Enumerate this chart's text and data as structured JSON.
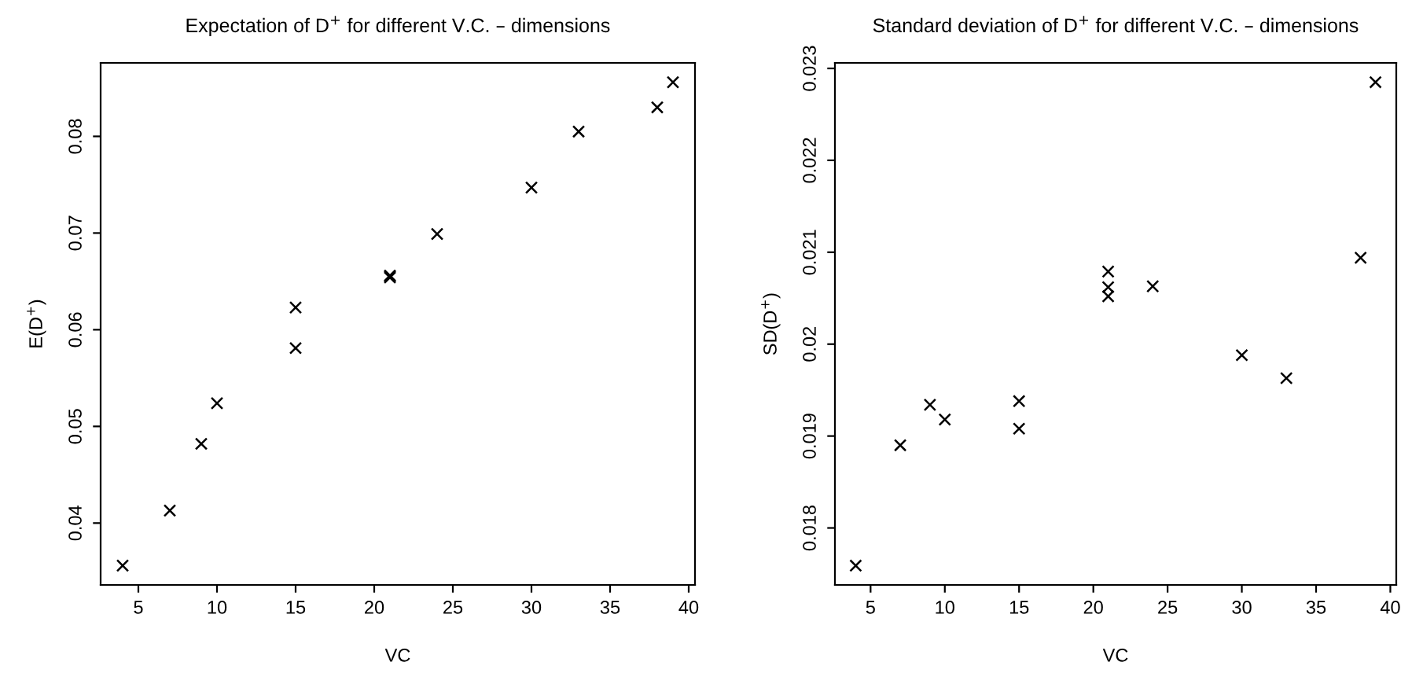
{
  "chart_data": [
    {
      "type": "scatter",
      "title": "Expectation of D$^{+}$ for different V.C. – dimensions",
      "xlabel": "VC",
      "ylabel": "E(D$^{+}$)",
      "marker": "cross",
      "grid": false,
      "legend": false,
      "x": [
        4,
        7,
        9,
        10,
        15,
        15,
        21,
        21,
        21,
        24,
        30,
        33,
        38,
        39
      ],
      "values": [
        0.0356,
        0.0413,
        0.0482,
        0.0524,
        0.0581,
        0.0623,
        0.0656,
        0.0655,
        0.0654,
        0.0699,
        0.0747,
        0.0805,
        0.083,
        0.0856
      ],
      "color": "#000000",
      "xlim": [
        2.6,
        40.4
      ],
      "xticks": [
        5,
        10,
        15,
        20,
        25,
        30,
        35,
        40
      ],
      "ylim": [
        0.0336,
        0.0876
      ],
      "yticks": [
        0.04,
        0.05,
        0.06,
        0.07,
        0.08
      ]
    },
    {
      "type": "scatter",
      "title": "Standard deviation of D$^{+}$ for different V.C. – dimensions",
      "xlabel": "VC",
      "ylabel": "SD(D$^{+}$)",
      "marker": "cross",
      "grid": false,
      "legend": false,
      "x": [
        4,
        7,
        9,
        10,
        15,
        15,
        21,
        21,
        21,
        24,
        30,
        33,
        38,
        39
      ],
      "values": [
        0.01759,
        0.0189,
        0.01934,
        0.01918,
        0.01938,
        0.01908,
        0.02079,
        0.02062,
        0.02052,
        0.02063,
        0.01988,
        0.01963,
        0.02094,
        0.02285
      ],
      "color": "#000000",
      "xlim": [
        2.6,
        40.4
      ],
      "xticks": [
        5,
        10,
        15,
        20,
        25,
        30,
        35,
        40
      ],
      "ylim": [
        0.01738,
        0.02306
      ],
      "yticks": [
        0.018,
        0.019,
        0.02,
        0.021,
        0.022,
        0.023
      ]
    }
  ]
}
